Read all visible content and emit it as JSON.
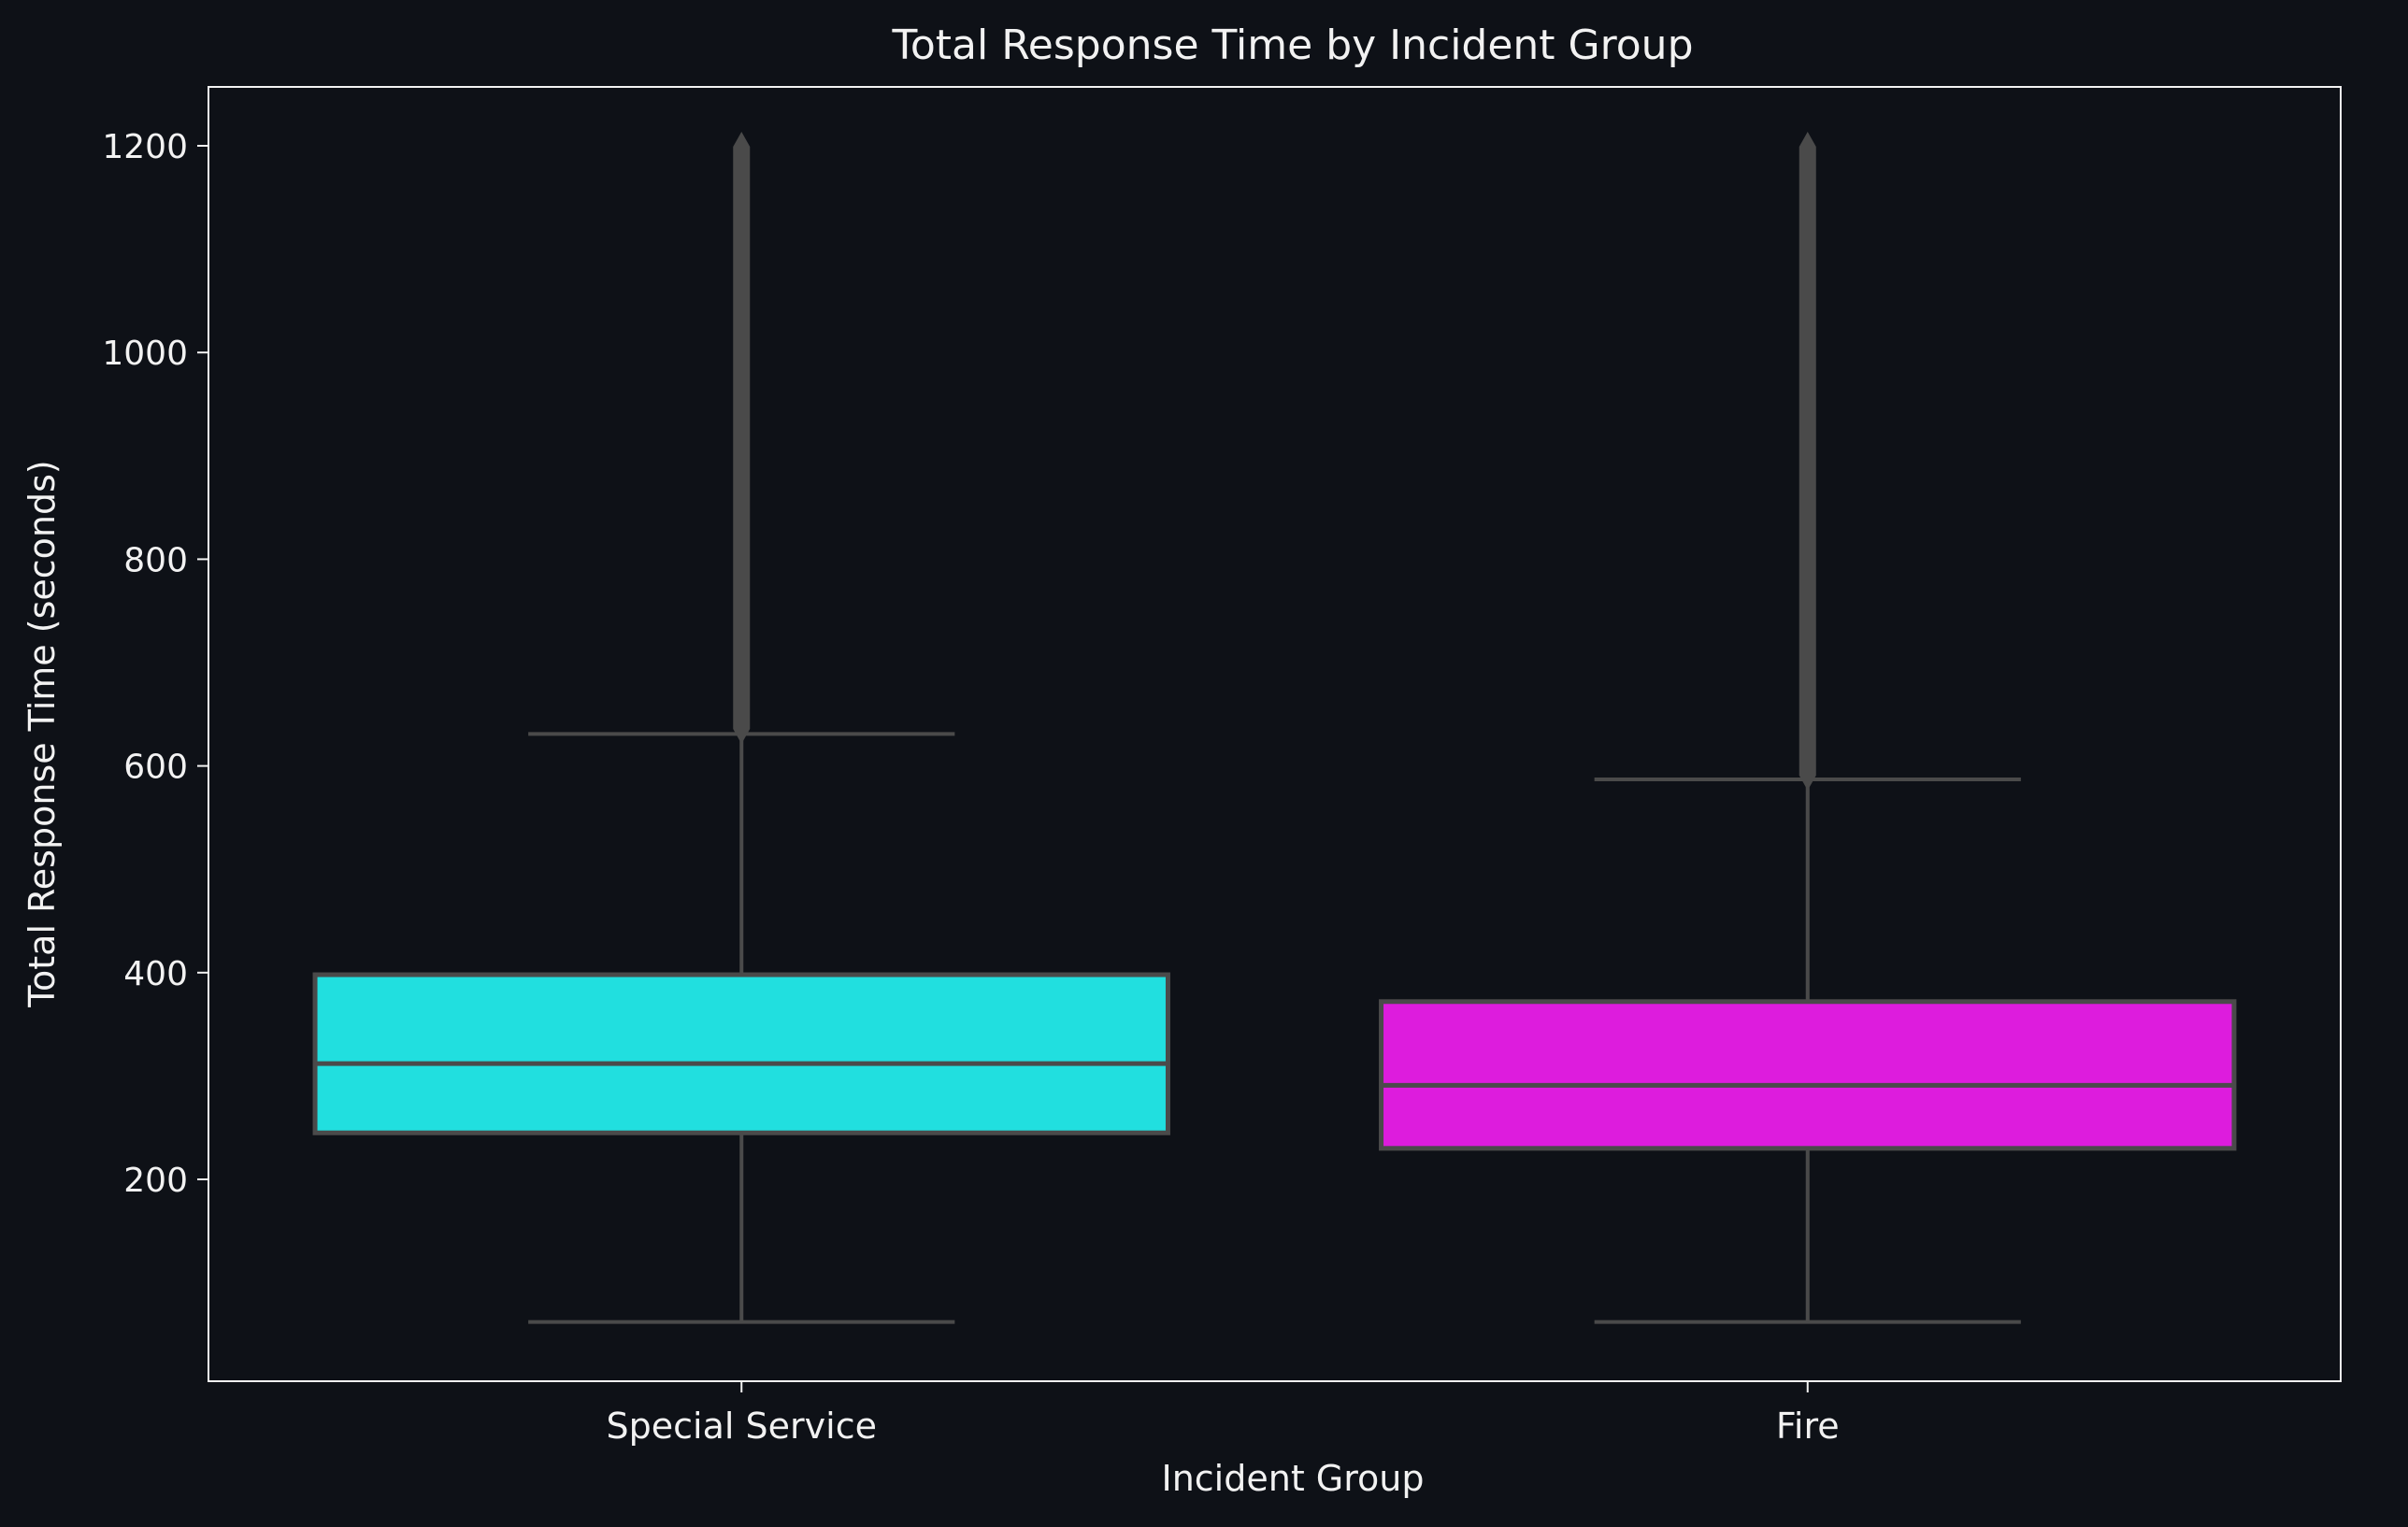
{
  "chart_data": {
    "type": "box",
    "title": "Total Response Time by Incident Group",
    "xlabel": "Incident Group",
    "ylabel": "Total Response Time (seconds)",
    "categories": [
      "Special Service",
      "Fire"
    ],
    "ylim": [
      20,
      1260
    ],
    "yticks": [
      200,
      400,
      600,
      800,
      1000,
      1200
    ],
    "grid": false,
    "colors": {
      "background": "#0e1117",
      "axes": "#f2f2f2",
      "box_edge": "#4a4a4a",
      "Special Service": "#21dfdf",
      "Fire": "#dd1cdd"
    },
    "boxes": [
      {
        "category": "Special Service",
        "whisker_low": 62,
        "q1": 245,
        "median": 312,
        "q3": 398,
        "whisker_high": 631,
        "outliers_min": 625,
        "outliers_max": 1210
      },
      {
        "category": "Fire",
        "whisker_low": 62,
        "q1": 230,
        "median": 291,
        "q3": 372,
        "whisker_high": 587,
        "outliers_min": 580,
        "outliers_max": 1210
      }
    ]
  }
}
